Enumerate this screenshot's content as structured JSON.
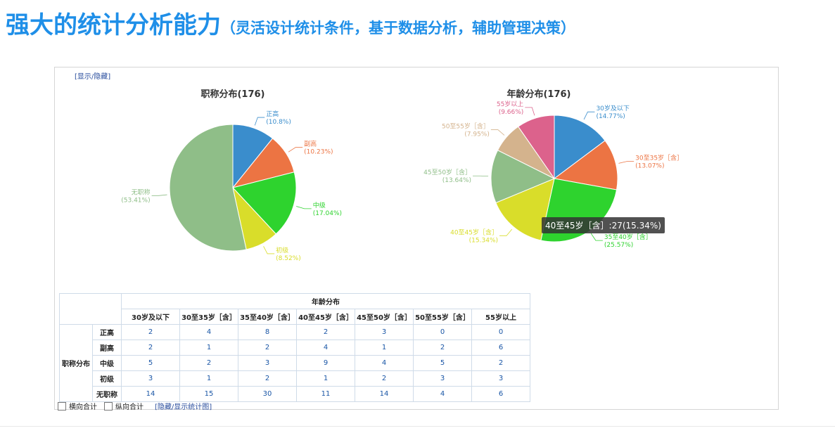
{
  "slide": {
    "title": "强大的统计分析能力",
    "subtitle": "（灵活设计统计条件，基于数据分析，辅助管理决策）"
  },
  "panel": {
    "toggle_link": "[显示/隐藏]",
    "tooltip": "40至45岁［含］:27(15.34%)"
  },
  "chart_data": [
    {
      "type": "pie",
      "title": "职称分布(176)",
      "labels": [
        "正高",
        "副高",
        "中级",
        "初级",
        "无职称"
      ],
      "values": [
        19,
        18,
        30,
        15,
        94
      ],
      "percent_labels": [
        "(10.8%)",
        "(10.23%)",
        "(17.04%)",
        "(8.52%)",
        "(53.41%)"
      ],
      "colors": [
        "#3a8dcc",
        "#ec7443",
        "#2ed32e",
        "#d9dd2a",
        "#8fbe88"
      ]
    },
    {
      "type": "pie",
      "title": "年龄分布(176)",
      "labels": [
        "30岁及以下",
        "30至35岁［含］",
        "35至40岁［含］",
        "40至45岁［含］",
        "45至50岁［含］",
        "50至55岁［含］",
        "55岁以上"
      ],
      "values": [
        26,
        23,
        45,
        27,
        24,
        14,
        17
      ],
      "percent_labels": [
        "(14.77%)",
        "(13.07%)",
        "(25.57%)",
        "(15.34%)",
        "(13.64%)",
        "(7.95%)",
        "(9.66%)"
      ],
      "colors": [
        "#3a8dcc",
        "#ec7443",
        "#2ed32e",
        "#d9dd2a",
        "#8fbe88",
        "#d4b38d",
        "#dc628c"
      ]
    }
  ],
  "table": {
    "group_header": "年龄分布",
    "row_group": "职称分布",
    "columns": [
      "30岁及以下",
      "30至35岁［含］",
      "35至40岁［含］",
      "40至45岁［含］",
      "45至50岁［含］",
      "50至55岁［含］",
      "55岁以上"
    ],
    "rows": [
      {
        "label": "正高",
        "values": [
          "2",
          "4",
          "8",
          "2",
          "3",
          "0",
          "0"
        ]
      },
      {
        "label": "副高",
        "values": [
          "2",
          "1",
          "2",
          "4",
          "1",
          "2",
          "6"
        ]
      },
      {
        "label": "中级",
        "values": [
          "5",
          "2",
          "3",
          "9",
          "4",
          "5",
          "2"
        ]
      },
      {
        "label": "初级",
        "values": [
          "3",
          "1",
          "2",
          "1",
          "2",
          "3",
          "3"
        ]
      },
      {
        "label": "无职称",
        "values": [
          "14",
          "15",
          "30",
          "11",
          "14",
          "4",
          "6"
        ]
      }
    ]
  },
  "footer": {
    "horizontal_total": "横向合计",
    "vertical_total": "纵向合计",
    "toggle_chart": "[隐藏/显示统计图]"
  }
}
